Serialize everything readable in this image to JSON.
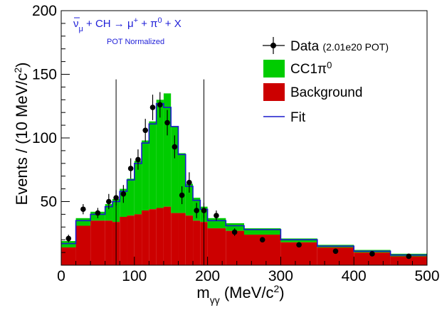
{
  "colors": {
    "signal": "#00cc00",
    "background": "#cc0000",
    "fit": "#1a1acc",
    "data": "#000000",
    "annotation": "#1f1fd8",
    "cut_line": "#000000"
  },
  "chart_data": {
    "type": "bar",
    "xlabel_main": "m",
    "xlabel_sub": "γγ",
    "xlabel_unit": " (MeV/c",
    "xlabel_sup": "2",
    "xlabel_close": ")",
    "ylabel_main": "Events / (10 MeV/c",
    "ylabel_sup": "2",
    "ylabel_close": ")",
    "xlim": [
      0,
      500
    ],
    "ylim": [
      0,
      200
    ],
    "x_ticks": [
      0,
      100,
      200,
      300,
      400,
      500
    ],
    "y_ticks": [
      50,
      100,
      150,
      200
    ],
    "annotation": {
      "nubar": "ν",
      "nubar_sub": "μ",
      "reaction": " + CH → μ",
      "reaction_sup": "+",
      "reaction_rest": " + π",
      "pi_sup": "0",
      "reaction_end": " + X",
      "pot_normalized": "POT Normalized"
    },
    "legend": {
      "data_label": "Data",
      "data_pot": "(2.01e20 POT)",
      "signal_label": "CC1π",
      "signal_sup": "0",
      "background_label": "Background",
      "fit_label": "Fit"
    },
    "cut_lines_x": [
      75,
      195
    ],
    "bins": [
      {
        "lo": 0,
        "hi": 20,
        "background": 14,
        "total": 19,
        "fit": 17
      },
      {
        "lo": 20,
        "hi": 40,
        "background": 31,
        "total": 37,
        "fit": 35
      },
      {
        "lo": 40,
        "hi": 60,
        "background": 35,
        "total": 42,
        "fit": 40
      },
      {
        "lo": 60,
        "hi": 70,
        "background": 35,
        "total": 48,
        "fit": 46
      },
      {
        "lo": 70,
        "hi": 80,
        "background": 34,
        "total": 52,
        "fit": 50
      },
      {
        "lo": 80,
        "hi": 90,
        "background": 38,
        "total": 60,
        "fit": 58
      },
      {
        "lo": 90,
        "hi": 100,
        "background": 39,
        "total": 68,
        "fit": 67
      },
      {
        "lo": 100,
        "hi": 110,
        "background": 40,
        "total": 82,
        "fit": 80
      },
      {
        "lo": 110,
        "hi": 120,
        "background": 43,
        "total": 98,
        "fit": 96
      },
      {
        "lo": 120,
        "hi": 130,
        "background": 44,
        "total": 113,
        "fit": 111
      },
      {
        "lo": 130,
        "hi": 140,
        "background": 45,
        "total": 130,
        "fit": 127
      },
      {
        "lo": 140,
        "hi": 150,
        "background": 46,
        "total": 135,
        "fit": 124
      },
      {
        "lo": 150,
        "hi": 160,
        "background": 41,
        "total": 109,
        "fit": 109
      },
      {
        "lo": 160,
        "hi": 170,
        "background": 41,
        "total": 88,
        "fit": 87
      },
      {
        "lo": 170,
        "hi": 180,
        "background": 39,
        "total": 64,
        "fit": 62
      },
      {
        "lo": 180,
        "hi": 190,
        "background": 35,
        "total": 53,
        "fit": 51
      },
      {
        "lo": 190,
        "hi": 200,
        "background": 34,
        "total": 46,
        "fit": 44
      },
      {
        "lo": 200,
        "hi": 225,
        "background": 29,
        "total": 37,
        "fit": 35
      },
      {
        "lo": 225,
        "hi": 250,
        "background": 27,
        "total": 33,
        "fit": 31
      },
      {
        "lo": 250,
        "hi": 300,
        "background": 24,
        "total": 29,
        "fit": 28
      },
      {
        "lo": 300,
        "hi": 350,
        "background": 18,
        "total": 21,
        "fit": 20
      },
      {
        "lo": 350,
        "hi": 400,
        "background": 14,
        "total": 16,
        "fit": 15
      },
      {
        "lo": 400,
        "hi": 450,
        "background": 10,
        "total": 12,
        "fit": 11
      },
      {
        "lo": 450,
        "hi": 500,
        "background": 7,
        "total": 9,
        "fit": 8
      }
    ],
    "data_points": [
      {
        "x": 10,
        "y": 21,
        "err": 3
      },
      {
        "x": 30,
        "y": 44,
        "err": 4
      },
      {
        "x": 50,
        "y": 41,
        "err": 4
      },
      {
        "x": 65,
        "y": 50,
        "err": 6
      },
      {
        "x": 75,
        "y": 53,
        "err": 6
      },
      {
        "x": 85,
        "y": 56,
        "err": 7
      },
      {
        "x": 95,
        "y": 76,
        "err": 8
      },
      {
        "x": 105,
        "y": 83,
        "err": 8
      },
      {
        "x": 115,
        "y": 106,
        "err": 9
      },
      {
        "x": 125,
        "y": 124,
        "err": 10
      },
      {
        "x": 135,
        "y": 126,
        "err": 10
      },
      {
        "x": 145,
        "y": 112,
        "err": 10
      },
      {
        "x": 155,
        "y": 93,
        "err": 9
      },
      {
        "x": 165,
        "y": 55,
        "err": 7
      },
      {
        "x": 175,
        "y": 65,
        "err": 8
      },
      {
        "x": 185,
        "y": 43,
        "err": 6
      },
      {
        "x": 195,
        "y": 43,
        "err": 6
      },
      {
        "x": 212,
        "y": 39,
        "err": 4
      },
      {
        "x": 237,
        "y": 26,
        "err": 3
      },
      {
        "x": 275,
        "y": 20,
        "err": 2
      },
      {
        "x": 325,
        "y": 16,
        "err": 2
      },
      {
        "x": 375,
        "y": 11,
        "err": 1
      },
      {
        "x": 425,
        "y": 9,
        "err": 1
      },
      {
        "x": 475,
        "y": 7,
        "err": 1
      }
    ]
  }
}
